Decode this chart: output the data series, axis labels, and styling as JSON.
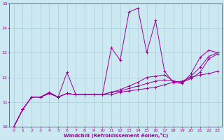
{
  "xlabel": "Windchill (Refroidissement éolien,°C)",
  "ylabel": "",
  "bg_color": "#cce8f0",
  "line_color": "#990099",
  "grid_color": "#aaccdd",
  "xlim": [
    -0.5,
    23.5
  ],
  "ylim": [
    10,
    15
  ],
  "yticks": [
    10,
    11,
    12,
    13,
    14,
    15
  ],
  "xticks": [
    0,
    1,
    2,
    3,
    4,
    5,
    6,
    7,
    8,
    9,
    10,
    11,
    12,
    13,
    14,
    15,
    16,
    17,
    18,
    19,
    20,
    21,
    22,
    23
  ],
  "lines": [
    {
      "x": [
        0,
        1,
        2,
        3,
        4,
        5,
        6,
        7,
        8,
        9,
        10,
        11,
        12,
        13,
        14,
        15,
        16,
        17,
        18,
        19,
        20,
        21,
        22,
        23
      ],
      "y": [
        10.0,
        10.7,
        11.2,
        11.2,
        11.4,
        11.2,
        12.2,
        11.3,
        11.3,
        11.3,
        11.3,
        13.2,
        12.7,
        14.65,
        14.8,
        13.0,
        14.3,
        12.25,
        11.8,
        11.75,
        12.15,
        12.8,
        13.1,
        13.0
      ]
    },
    {
      "x": [
        0,
        1,
        2,
        3,
        4,
        5,
        6,
        7,
        8,
        9,
        10,
        11,
        12,
        13,
        14,
        15,
        16,
        17,
        18,
        19,
        20,
        21,
        22,
        23
      ],
      "y": [
        10.0,
        10.7,
        11.2,
        11.2,
        11.35,
        11.2,
        11.35,
        11.3,
        11.3,
        11.3,
        11.3,
        11.3,
        11.4,
        11.45,
        11.5,
        11.55,
        11.6,
        11.7,
        11.8,
        11.85,
        12.0,
        12.1,
        12.15,
        12.25
      ]
    },
    {
      "x": [
        0,
        1,
        2,
        3,
        4,
        5,
        6,
        7,
        8,
        9,
        10,
        11,
        12,
        13,
        14,
        15,
        16,
        17,
        18,
        19,
        20,
        21,
        22,
        23
      ],
      "y": [
        10.0,
        10.7,
        11.2,
        11.2,
        11.35,
        11.2,
        11.35,
        11.3,
        11.3,
        11.3,
        11.3,
        11.4,
        11.5,
        11.65,
        11.8,
        12.0,
        12.05,
        12.1,
        11.85,
        11.8,
        12.05,
        12.4,
        12.85,
        13.0
      ]
    },
    {
      "x": [
        0,
        1,
        2,
        3,
        4,
        5,
        6,
        7,
        8,
        9,
        10,
        11,
        12,
        13,
        14,
        15,
        16,
        17,
        18,
        19,
        20,
        21,
        22,
        23
      ],
      "y": [
        10.0,
        10.7,
        11.2,
        11.2,
        11.35,
        11.2,
        11.35,
        11.3,
        11.3,
        11.3,
        11.3,
        11.4,
        11.45,
        11.55,
        11.65,
        11.75,
        11.85,
        11.9,
        11.85,
        11.8,
        11.95,
        12.2,
        12.75,
        12.95
      ]
    }
  ]
}
